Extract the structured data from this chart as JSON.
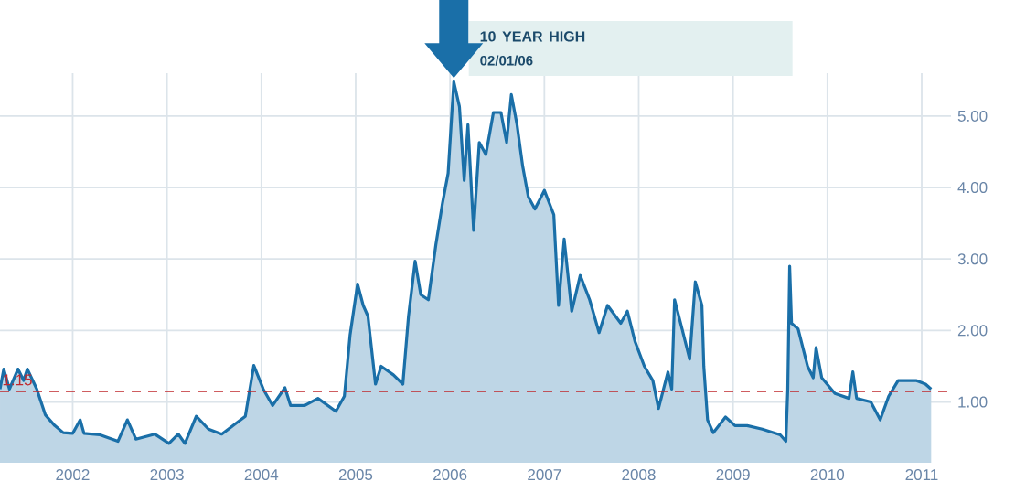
{
  "chart_data": {
    "type": "area",
    "x": [
      2001.23,
      2001.27,
      2001.33,
      2001.42,
      2001.48,
      2001.52,
      2001.62,
      2001.71,
      2001.81,
      2001.9,
      2002.0,
      2002.08,
      2002.12,
      2002.29,
      2002.48,
      2002.58,
      2002.67,
      2002.87,
      2003.02,
      2003.12,
      2003.19,
      2003.31,
      2003.44,
      2003.58,
      2003.73,
      2003.83,
      2003.92,
      2004.02,
      2004.12,
      2004.25,
      2004.31,
      2004.46,
      2004.6,
      2004.79,
      2004.88,
      2004.94,
      2005.02,
      2005.08,
      2005.13,
      2005.21,
      2005.27,
      2005.4,
      2005.5,
      2005.56,
      2005.63,
      2005.69,
      2005.77,
      2005.85,
      2005.92,
      2005.98,
      2006.04,
      2006.1,
      2006.15,
      2006.19,
      2006.25,
      2006.31,
      2006.38,
      2006.46,
      2006.54,
      2006.6,
      2006.65,
      2006.71,
      2006.77,
      2006.83,
      2006.9,
      2007.0,
      2007.1,
      2007.15,
      2007.21,
      2007.29,
      2007.38,
      2007.48,
      2007.58,
      2007.67,
      2007.81,
      2007.88,
      2007.96,
      2008.06,
      2008.15,
      2008.21,
      2008.31,
      2008.35,
      2008.38,
      2008.46,
      2008.54,
      2008.6,
      2008.67,
      2008.69,
      2008.73,
      2008.79,
      2008.92,
      2009.02,
      2009.15,
      2009.31,
      2009.5,
      2009.56,
      2009.58,
      2009.6,
      2009.62,
      2009.69,
      2009.79,
      2009.85,
      2009.88,
      2009.94,
      2010.08,
      2010.23,
      2010.27,
      2010.31,
      2010.46,
      2010.56,
      2010.65,
      2010.75,
      2010.85,
      2010.94,
      2011.04,
      2011.1
    ],
    "values": [
      1.18,
      1.46,
      1.18,
      1.46,
      1.3,
      1.46,
      1.18,
      0.82,
      0.67,
      0.57,
      0.56,
      0.75,
      0.56,
      0.54,
      0.45,
      0.75,
      0.48,
      0.55,
      0.42,
      0.55,
      0.42,
      0.8,
      0.62,
      0.55,
      0.7,
      0.8,
      1.51,
      1.18,
      0.95,
      1.2,
      0.95,
      0.95,
      1.05,
      0.87,
      1.08,
      1.93,
      2.65,
      2.35,
      2.2,
      1.25,
      1.5,
      1.38,
      1.25,
      2.2,
      2.97,
      2.5,
      2.43,
      3.2,
      3.78,
      4.2,
      5.48,
      5.13,
      4.1,
      4.88,
      3.4,
      4.63,
      4.46,
      5.05,
      5.05,
      4.63,
      5.3,
      4.88,
      4.3,
      3.87,
      3.7,
      3.96,
      3.62,
      2.35,
      3.28,
      2.27,
      2.77,
      2.43,
      1.97,
      2.35,
      2.1,
      2.27,
      1.85,
      1.5,
      1.3,
      0.91,
      1.42,
      1.18,
      2.43,
      2.02,
      1.6,
      2.68,
      2.35,
      1.5,
      0.75,
      0.57,
      0.79,
      0.67,
      0.67,
      0.62,
      0.54,
      0.45,
      1.18,
      2.9,
      2.1,
      2.02,
      1.5,
      1.34,
      1.76,
      1.34,
      1.12,
      1.05,
      1.42,
      1.05,
      1.0,
      0.75,
      1.08,
      1.3,
      1.3,
      1.3,
      1.25,
      1.18
    ],
    "color": "#1a6fa8",
    "xlim": [
      2001.23,
      2011.31
    ],
    "xticks": [
      2002,
      2003,
      2004,
      2005,
      2006,
      2007,
      2008,
      2009,
      2010,
      2011
    ],
    "ylim": [
      0.15,
      5.6
    ],
    "yticks": [
      {
        "value": 1,
        "label": "1.00"
      },
      {
        "value": 2,
        "label": "2.00"
      },
      {
        "value": 3,
        "label": "3.00"
      },
      {
        "value": 4,
        "label": "4.00"
      },
      {
        "value": 5,
        "label": "5.00"
      }
    ],
    "grid": true,
    "ref_lines": [
      {
        "axis": "y",
        "value": 1.15,
        "label": "1.15",
        "color": "#c0282d",
        "line_style": "dashed"
      }
    ],
    "annotations": [
      "10 YEAR HIGH",
      "02/01/06"
    ]
  }
}
